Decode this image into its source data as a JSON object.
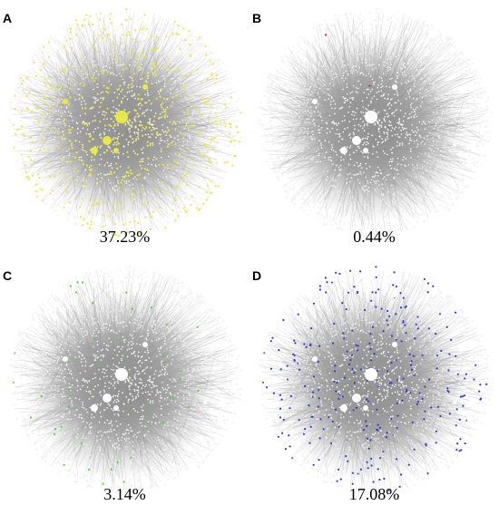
{
  "figure": {
    "background": "#ffffff",
    "edge_color": "#9a9a9a",
    "node_base_color": "#ffffff",
    "panels": [
      {
        "letter": "A",
        "percent_label": "37.23%",
        "highlight_color": "#e8e84a",
        "highlight_fraction": 0.3723
      },
      {
        "letter": "B",
        "percent_label": "0.44%",
        "highlight_color": "#b03040",
        "highlight_fraction": 0.0044
      },
      {
        "letter": "C",
        "percent_label": "3.14%",
        "highlight_color": "#5fc84a",
        "highlight_fraction": 0.0314
      },
      {
        "letter": "D",
        "percent_label": "17.08%",
        "highlight_color": "#3a3ac8",
        "highlight_fraction": 0.1708
      }
    ]
  }
}
